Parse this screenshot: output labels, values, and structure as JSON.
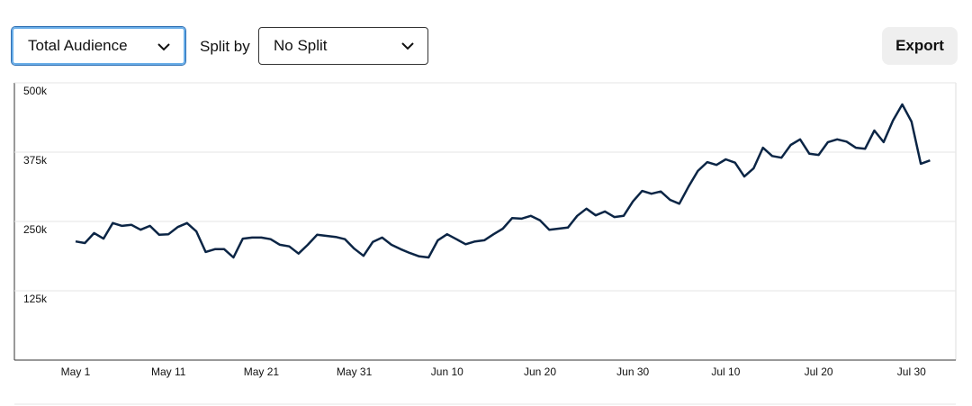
{
  "controls": {
    "metric": "Total Audience",
    "split_label": "Split by",
    "split": "No Split",
    "export": "Export"
  },
  "chart_data": {
    "type": "line",
    "color": "#0b2545",
    "grid": true,
    "categories": [
      "May 1",
      null,
      null,
      null,
      null,
      null,
      null,
      null,
      null,
      null,
      "May 11",
      null,
      null,
      null,
      null,
      null,
      null,
      null,
      null,
      null,
      "May 21",
      null,
      null,
      null,
      null,
      null,
      null,
      null,
      null,
      null,
      "May 31",
      null,
      null,
      null,
      null,
      null,
      null,
      null,
      null,
      null,
      "Jun 10",
      null,
      null,
      null,
      null,
      null,
      null,
      null,
      null,
      null,
      "Jun 20",
      null,
      null,
      null,
      null,
      null,
      null,
      null,
      null,
      null,
      "Jun 30",
      null,
      null,
      null,
      null,
      null,
      null,
      null,
      null,
      null,
      "Jul 10",
      null,
      null,
      null,
      null,
      null,
      null,
      null,
      null,
      null,
      "Jul 20",
      null,
      null,
      null,
      null,
      null,
      null,
      null,
      null,
      null,
      "Jul 30",
      null,
      null
    ],
    "values": [
      214000,
      211000,
      229000,
      219000,
      247000,
      242000,
      244000,
      235000,
      242000,
      226000,
      227000,
      240000,
      247000,
      232000,
      195000,
      200000,
      200000,
      185000,
      219000,
      221000,
      221000,
      218000,
      208000,
      205000,
      192000,
      208000,
      226000,
      224000,
      222000,
      218000,
      201000,
      188000,
      213000,
      221000,
      208000,
      200000,
      193000,
      187000,
      185000,
      216000,
      227000,
      218000,
      209000,
      214000,
      216000,
      227000,
      237000,
      256000,
      255000,
      260000,
      252000,
      235000,
      237000,
      239000,
      260000,
      273000,
      261000,
      268000,
      258000,
      260000,
      286000,
      305000,
      300000,
      304000,
      289000,
      282000,
      313000,
      341000,
      357000,
      352000,
      362000,
      356000,
      331000,
      346000,
      383000,
      368000,
      365000,
      388000,
      398000,
      372000,
      370000,
      393000,
      398000,
      394000,
      383000,
      381000,
      414000,
      393000,
      432000,
      461000,
      430000,
      354000,
      360000
    ],
    "ylim": [
      0,
      500000
    ],
    "yticks": [
      {
        "value": 125000,
        "label": "125k"
      },
      {
        "value": 250000,
        "label": "250k"
      },
      {
        "value": 375000,
        "label": "375k"
      },
      {
        "value": 500000,
        "label": "500k"
      }
    ]
  }
}
